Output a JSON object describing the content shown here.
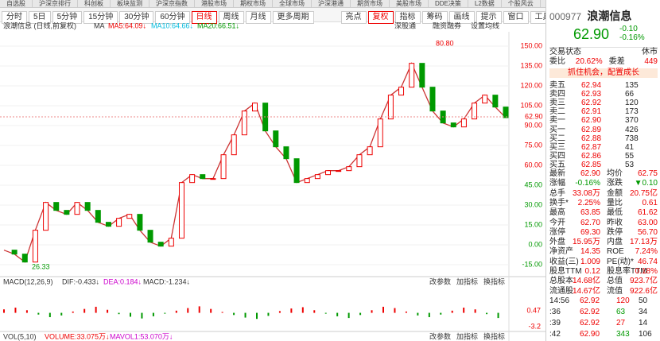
{
  "top_nav": [
    "自选股",
    "沪深京排行",
    "科创板",
    "板块监测",
    "沪深京指数",
    "港股市场",
    "期权市场",
    "全球市场",
    "沪深港通",
    "期货市场",
    "美股市场",
    "DDE决策",
    "L2数据",
    "个股风云",
    "分析师视角"
  ],
  "period_tabs": [
    "分时",
    "5日",
    "5分钟",
    "15分钟",
    "30分钟",
    "60分钟",
    "日线",
    "周线",
    "月线",
    "更多周期"
  ],
  "active_period": 6,
  "tool_tabs": [
    "亮点",
    "复权",
    "指标",
    "筹码",
    "画线",
    "提示",
    "窗口",
    "工具"
  ],
  "chart": {
    "title": "浪潮信息 (日线,前复权)",
    "ma_label": "MA",
    "ma5": "MA5:64.09↓",
    "ma10": "MA10:64.66↓",
    "ma20": "MA20:66.51↓",
    "links": [
      "深股通",
      "融资融券",
      "设置均线"
    ],
    "yticks": [
      {
        "value": 150,
        "label": "150.00"
      },
      {
        "value": 135,
        "label": "135.00"
      },
      {
        "value": 120,
        "label": "120.00"
      },
      {
        "value": 105,
        "label": "105.00"
      },
      {
        "value": 90,
        "label": "90.00"
      },
      {
        "value": 75,
        "label": "75.00"
      },
      {
        "value": 60,
        "label": "60.00"
      },
      {
        "value": 45,
        "label": "45.00"
      },
      {
        "value": 30,
        "label": "30.00"
      },
      {
        "value": 15,
        "label": "15.00"
      },
      {
        "value": 0,
        "label": "0.00"
      },
      {
        "value": -15,
        "label": "-15.00"
      }
    ],
    "closes": [
      -4,
      -7,
      -13,
      11,
      32,
      26,
      23,
      32,
      26,
      17,
      14,
      20,
      23,
      11,
      2,
      -1,
      5,
      47,
      53,
      50,
      50,
      68,
      83,
      101,
      107,
      86,
      74,
      65,
      47,
      50,
      53,
      56,
      56,
      59,
      68,
      74,
      95,
      113,
      119,
      137,
      119,
      101,
      92,
      89,
      95,
      107,
      113,
      104,
      96
    ],
    "current_price_label": "62.90",
    "high_label": "80.80",
    "low_label": "26.33"
  },
  "macd": {
    "header": "MACD(12,26,9)",
    "dif": "DIF:-0.433↓",
    "dea": "DEA:0.184↓",
    "macd": "MACD:-1.234↓",
    "buttons": [
      "改参数",
      "加指标",
      "换指标"
    ],
    "yticks": [
      0.47,
      -3.2
    ],
    "bars": [
      0.8,
      1.2,
      0.6,
      -0.4,
      -1.0,
      -0.6,
      0.3,
      0.9,
      1.4,
      0.7,
      -0.3,
      -0.9,
      -1.3,
      -0.8,
      -0.2,
      0.5,
      1.1,
      1.5,
      0.9,
      0.2,
      -0.5,
      -1.1,
      -1.4,
      -0.7,
      0.4,
      1.0,
      1.3,
      0.6,
      -0.2,
      -0.8,
      -1.2,
      -0.5,
      0.6,
      1.4,
      1.1,
      0.3,
      -0.6,
      -1.0,
      -0.4,
      0.5,
      1.2,
      0.8,
      -0.3,
      -1.2
    ]
  },
  "vol": {
    "header": "VOL(5,10)",
    "volume": "VOLUME:33.075万↓",
    "mavol1": "MAVOL1:53.070万↓",
    "buttons": [
      "改参数",
      "加指标",
      "换指标"
    ]
  },
  "quote": {
    "code": "000977",
    "name": "浪潮信息",
    "price": "62.90",
    "change": "-0.10",
    "change_pct": "-0.16%",
    "status_label": "交易状态",
    "status": "休市",
    "weibi_label": "委比",
    "weibi": "20.62%",
    "weicha_label": "委差",
    "weicha": "449",
    "ad": "抓住机会，配置成长",
    "asks": [
      [
        "卖五",
        "62.94",
        "135"
      ],
      [
        "卖四",
        "62.93",
        "66"
      ],
      [
        "卖三",
        "62.92",
        "120"
      ],
      [
        "卖二",
        "62.91",
        "173"
      ],
      [
        "卖一",
        "62.90",
        "370"
      ]
    ],
    "bids": [
      [
        "买一",
        "62.89",
        "426"
      ],
      [
        "买二",
        "62.88",
        "738"
      ],
      [
        "买三",
        "62.87",
        "41"
      ],
      [
        "买四",
        "62.86",
        "55"
      ],
      [
        "买五",
        "62.85",
        "53"
      ]
    ],
    "stats": [
      [
        "最新",
        "62.90",
        "均价",
        "62.75"
      ],
      [
        "涨幅",
        "-0.16%",
        "涨跌",
        "▼0.10"
      ],
      [
        "总手",
        "33.08万",
        "金额",
        "20.75亿"
      ],
      [
        "换手*",
        "2.25%",
        "量比",
        "0.61"
      ],
      [
        "最高",
        "63.85",
        "最低",
        "61.62"
      ],
      [
        "今开",
        "62.70",
        "昨收",
        "63.00"
      ],
      [
        "涨停",
        "69.30",
        "跌停",
        "56.70"
      ],
      [
        "外盘",
        "15.95万",
        "内盘",
        "17.13万"
      ],
      [
        "净资产",
        "14.35",
        "ROE",
        "7.24%"
      ],
      [
        "收益(三)",
        "1.009",
        "PE(动)*",
        "46.74"
      ],
      [
        "股息TTM",
        "0.12",
        "股息率TTM",
        "0.18%"
      ],
      [
        "总股本",
        "14.68亿",
        "总值",
        "923.7亿"
      ],
      [
        "流通股",
        "14.67亿",
        "流值",
        "922.6亿"
      ]
    ],
    "trades": [
      [
        "14:56",
        "62.92",
        "120",
        "50"
      ],
      [
        ":36",
        "62.92",
        "63",
        "34"
      ],
      [
        ":39",
        "62.92",
        "27",
        "14"
      ],
      [
        ":42",
        "62.90",
        "343",
        "106"
      ]
    ]
  }
}
